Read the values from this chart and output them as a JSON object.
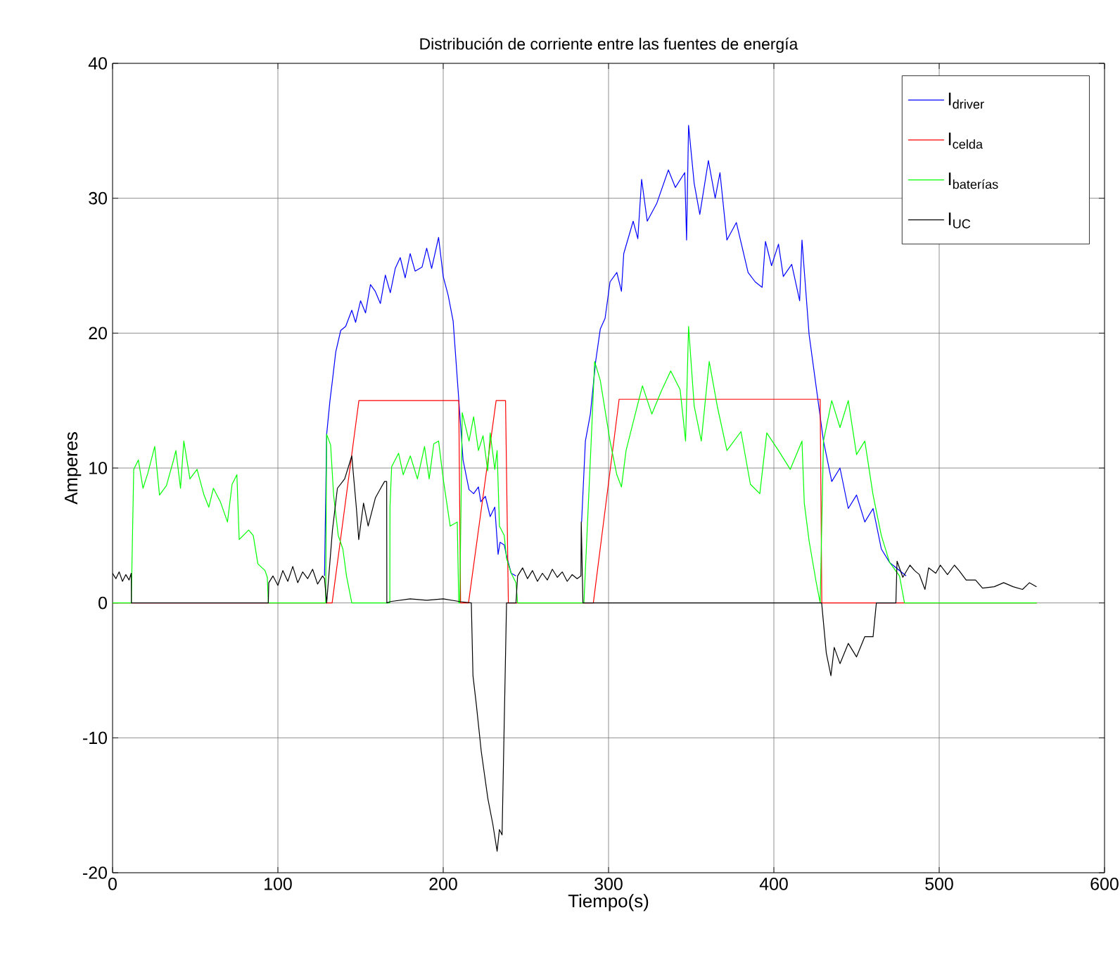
{
  "chart_data": {
    "type": "line",
    "title": "Distribución de corriente entre las fuentes de energía",
    "xlabel": "Tiempo(s)",
    "ylabel": "Amperes",
    "xlim": [
      0,
      600
    ],
    "ylim": [
      -20,
      40
    ],
    "xticks": [
      0,
      100,
      200,
      300,
      400,
      500,
      600
    ],
    "yticks": [
      -20,
      -10,
      0,
      10,
      20,
      30,
      40
    ],
    "grid": true,
    "legend": "top right",
    "marker": "none",
    "line_style": "solid",
    "series": [
      {
        "name": "I$_{driver}$",
        "color": "#0000ff",
        "x": [
          128.2,
          129.5,
          131.5,
          133,
          135,
          138,
          141,
          144.7,
          147,
          150,
          153,
          156,
          158.9,
          162,
          165,
          168,
          171,
          174,
          177,
          180,
          183,
          187.2,
          190,
          193,
          197.2,
          200,
          203,
          206,
          209.4,
          212,
          215.6,
          218.4,
          221.3,
          222.7,
          225.5,
          228.4,
          231.2,
          233.2,
          234.4,
          236.9,
          238.3,
          241.1,
          244,
          260,
          283.7,
          286,
          289,
          292.2,
          295.0,
          297.9,
          300.9,
          305.0,
          307.8,
          309.2,
          314.9,
          317.7,
          320.0,
          323.4,
          329.1,
          336.2,
          340.4,
          346.1,
          347.2,
          348.4,
          351.8,
          355.2,
          360.4,
          364.5,
          367.4,
          371.6,
          377.3,
          384.4,
          388.7,
          392.9,
          394.9,
          398.6,
          402.8,
          405.7,
          410.8,
          415.6,
          417.0,
          421.3,
          425.5,
          430,
          435,
          440,
          445,
          450,
          455,
          460,
          465,
          470,
          475,
          480
        ],
        "values": [
          2.0,
          12.5,
          15.0,
          16.5,
          18.6,
          20.2,
          20.5,
          21.7,
          20.8,
          22.4,
          21.5,
          23.6,
          23.1,
          22.2,
          24.3,
          23.0,
          24.8,
          25.6,
          24.1,
          25.9,
          24.6,
          24.9,
          26.3,
          24.8,
          27.1,
          24.2,
          22.8,
          20.9,
          15.1,
          10.6,
          8.4,
          8.1,
          8.6,
          7.5,
          7.9,
          6.4,
          7.1,
          3.6,
          4.5,
          4.3,
          3.5,
          2.2,
          2.0,
          null,
          6.0,
          12.0,
          14.0,
          17.9,
          20.3,
          21.1,
          23.8,
          24.5,
          23.1,
          25.9,
          28.3,
          27.0,
          31.4,
          28.3,
          29.6,
          32.1,
          30.8,
          31.9,
          26.9,
          35.4,
          31.1,
          28.8,
          32.8,
          30.0,
          31.9,
          26.9,
          28.2,
          24.5,
          23.8,
          23.4,
          26.8,
          25.0,
          26.6,
          24.2,
          25.1,
          22.4,
          26.9,
          19.9,
          16.1,
          12.0,
          9.0,
          10.0,
          7.0,
          8.0,
          6.0,
          7.0,
          4.0,
          3.0,
          2.5,
          2.0
        ]
      },
      {
        "name": "I$_{celda}$",
        "color": "#ff0000",
        "x": [
          0,
          132.8,
          149,
          209.4,
          210.5,
          215.3,
          232,
          237.7,
          239.4,
          290.8,
          306.4,
          428,
          429,
          559
        ],
        "values": [
          0,
          0,
          15,
          15,
          0,
          0,
          15,
          15,
          0,
          0,
          15.1,
          15.1,
          0,
          0
        ]
      },
      {
        "name": "I$_{baterías}$",
        "color": "#00ff00",
        "x": [
          0,
          11.3,
          12.8,
          15.6,
          18.4,
          21.3,
          25.5,
          28.4,
          32.6,
          36.9,
          38.3,
          41.1,
          43.1,
          46.8,
          51.1,
          55.3,
          58.2,
          61,
          65.2,
          69.5,
          72.3,
          75.2,
          76.6,
          82.3,
          85.1,
          87.9,
          92.2,
          93.6,
          94.2,
          128.9,
          129.5,
          131.9,
          133.7,
          136.5,
          139.3,
          141.5,
          144.7,
          167.7,
          167.8,
          168.8,
          173,
          175.8,
          180.1,
          184.4,
          188.7,
          191.5,
          194.3,
          197.2,
          200,
          204.2,
          208.5,
          209.4,
          210,
          211.5,
          215.6,
          218.4,
          221.3,
          224.1,
          226.9,
          228.4,
          231.2,
          232.6,
          234.0,
          236.9,
          238.3,
          241.1,
          244,
          245,
          285.1,
          289.5,
          291.6,
          295.0,
          300.9,
          305.0,
          307.8,
          310.6,
          314.9,
          320.5,
          326.2,
          331.9,
          337.6,
          343.3,
          346.6,
          348.4,
          351.8,
          356.1,
          360.9,
          365.9,
          371.6,
          380.1,
          385.8,
          391.5,
          395.7,
          402.8,
          409.9,
          417.0,
          418.4,
          421.3,
          425.5,
          428,
          430,
          435,
          440,
          445,
          450,
          455,
          460,
          465,
          470,
          476,
          479,
          559
        ],
        "values": [
          0,
          0,
          9.9,
          10.6,
          8.5,
          9.6,
          11.6,
          8.0,
          8.7,
          10.6,
          11.3,
          8.5,
          12.0,
          9.2,
          9.9,
          8.0,
          7.1,
          8.5,
          7.5,
          6.0,
          8.8,
          9.5,
          4.7,
          5.4,
          5.0,
          2.9,
          2.4,
          1.9,
          0,
          0,
          12.5,
          11.7,
          8.0,
          5.0,
          4.0,
          2.0,
          0,
          0,
          7.1,
          10.1,
          11.1,
          9.5,
          10.9,
          9.2,
          11.6,
          9.2,
          11.8,
          12.0,
          9.2,
          5.7,
          6.0,
          0,
          0,
          14.1,
          12.0,
          13.8,
          11.3,
          12.4,
          9.8,
          12.6,
          9.9,
          11.3,
          5.7,
          5.0,
          3.3,
          2.2,
          1.5,
          0,
          0,
          12.0,
          17.9,
          16.5,
          12.0,
          9.5,
          8.6,
          11.3,
          13.4,
          16.1,
          14.0,
          15.7,
          17.2,
          15.8,
          12.0,
          20.5,
          14.6,
          12.0,
          17.9,
          14.5,
          11.3,
          12.7,
          8.8,
          8.1,
          12.6,
          11.3,
          9.9,
          12.0,
          7.4,
          4.6,
          1.6,
          0,
          12.0,
          15.0,
          13.0,
          15.0,
          11.0,
          12.0,
          8.0,
          5.0,
          3.0,
          2.0,
          0,
          0
        ]
      },
      {
        "name": "I$_{UC}$",
        "color": "#000000",
        "x": [
          0,
          2,
          4,
          6,
          8,
          10,
          11.3,
          11.4,
          94.2,
          94.5,
          97,
          100,
          103,
          106,
          109,
          112,
          115,
          118,
          121,
          124,
          127,
          128.2,
          129.5,
          133,
          136,
          140.4,
          144.7,
          147.5,
          148.9,
          151.8,
          154.6,
          159,
          161.7,
          164.5,
          165.8,
          165.9,
          168,
          180,
          190,
          200,
          210,
          217,
          218,
          220,
          223,
          227,
          230,
          232.6,
          234,
          235.6,
          238.3,
          244,
          245,
          248,
          251,
          254,
          257,
          260,
          263,
          266,
          269,
          272,
          275,
          278,
          281,
          283.3,
          283.5,
          284.5,
          426.4,
          428.9,
          431.7,
          434.5,
          436.5,
          440,
          445,
          450,
          455,
          460,
          462,
          473.8,
          474.5,
          478,
          482.3,
          485.1,
          488,
          491.4,
          493.6,
          497.9,
          500.7,
          505,
          509.2,
          512,
          516.3,
          522,
          526.2,
          533.3,
          539,
          544.7,
          550.4,
          554.6,
          558.9
        ],
        "values": [
          2.2,
          1.8,
          2.3,
          1.6,
          2.1,
          1.7,
          2.2,
          0,
          0,
          1.5,
          2.0,
          1.3,
          2.4,
          1.6,
          2.7,
          1.5,
          2.3,
          1.8,
          2.5,
          1.4,
          2.0,
          1.8,
          0,
          5.4,
          8.5,
          9.2,
          10.9,
          7.0,
          4.7,
          7.4,
          5.7,
          7.8,
          8.4,
          9.0,
          9.0,
          0,
          0.1,
          0.3,
          0.2,
          0.3,
          0.1,
          0,
          -5.4,
          -7.5,
          -11.0,
          -14.5,
          -16.4,
          -18.4,
          -16.8,
          -17.2,
          0,
          0,
          2.0,
          2.6,
          1.8,
          2.4,
          1.6,
          2.2,
          1.7,
          2.5,
          1.9,
          2.3,
          1.6,
          2.1,
          1.8,
          2.0,
          6.0,
          0,
          0,
          0,
          -3.7,
          -5.4,
          -3.3,
          -4.5,
          -3.0,
          -4.0,
          -2.5,
          -2.5,
          0,
          0,
          3.1,
          1.9,
          2.8,
          2.4,
          2.1,
          1.0,
          2.6,
          2.2,
          2.8,
          2.1,
          2.8,
          2.4,
          1.7,
          1.7,
          1.1,
          1.2,
          1.5,
          1.2,
          1.0,
          1.5,
          1.2
        ]
      }
    ]
  }
}
